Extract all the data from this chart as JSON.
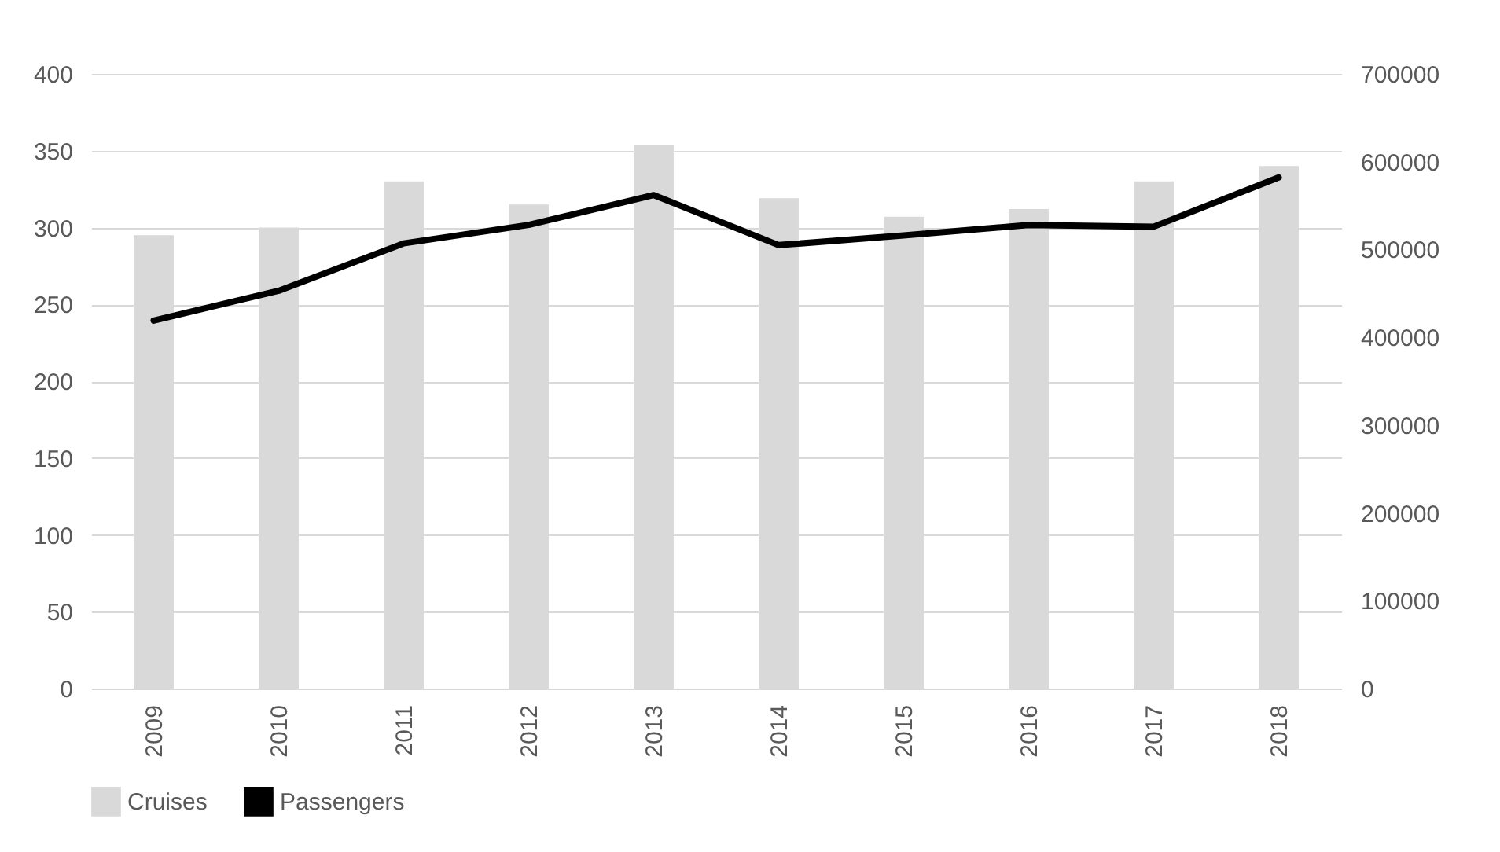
{
  "chart_data": {
    "type": "bar",
    "categories": [
      "2009",
      "2010",
      "2011",
      "2012",
      "2013",
      "2014",
      "2015",
      "2016",
      "2017",
      "2018"
    ],
    "series": [
      {
        "name": "Cruises",
        "color": "#d9d9d9",
        "values": [
          295,
          300,
          330,
          315,
          354,
          319,
          307,
          312,
          330,
          340
        ]
      },
      {
        "name": "Passengers",
        "type": "line",
        "axis": "y2",
        "color": "#000000",
        "values": [
          419000,
          453000,
          507000,
          528000,
          562000,
          505000,
          516000,
          528000,
          526000,
          582000
        ]
      }
    ],
    "ylim": [
      0,
      400
    ],
    "yticks": [
      0,
      50,
      100,
      150,
      200,
      250,
      300,
      350,
      400
    ],
    "y2lim": [
      0,
      700000
    ],
    "y2ticks": [
      0,
      100000,
      200000,
      300000,
      400000,
      500000,
      600000,
      700000
    ],
    "grid": "y",
    "legend": "bottom"
  }
}
